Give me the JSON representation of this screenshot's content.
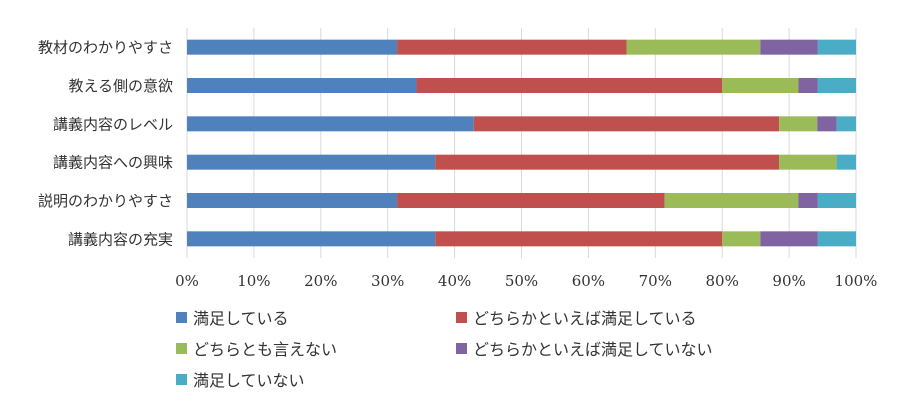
{
  "chart_data": {
    "type": "bar",
    "orientation": "horizontal",
    "stacked": "percent",
    "categories": [
      "教材のわかりやすさ",
      "教える側の意欲",
      "講義内容のレベル",
      "講義内容への興味",
      "説明のわかりやすさ",
      "講義内容の充実"
    ],
    "series": [
      {
        "name": "満足している",
        "color": "#4f81bd",
        "values": [
          31.4,
          34.3,
          42.9,
          37.1,
          31.4,
          37.1
        ]
      },
      {
        "name": "どちらかといえば満足している",
        "color": "#c0504d",
        "values": [
          34.3,
          45.7,
          45.7,
          51.4,
          40.0,
          42.9
        ]
      },
      {
        "name": "どちらとも言えない",
        "color": "#9bbb59",
        "values": [
          20.0,
          11.4,
          5.7,
          8.6,
          20.0,
          5.7
        ]
      },
      {
        "name": "どちらかといえば満足していない",
        "color": "#8064a2",
        "values": [
          8.6,
          2.9,
          2.9,
          0,
          2.9,
          8.6
        ]
      },
      {
        "name": "満足していない",
        "color": "#4bacc6",
        "values": [
          5.7,
          5.7,
          2.9,
          2.9,
          5.7,
          5.7
        ]
      }
    ],
    "x_ticks": [
      "0%",
      "10%",
      "20%",
      "30%",
      "40%",
      "50%",
      "60%",
      "70%",
      "80%",
      "90%",
      "100%"
    ],
    "xlim": [
      0,
      100
    ],
    "grid": "vertical",
    "legend_position": "bottom"
  }
}
